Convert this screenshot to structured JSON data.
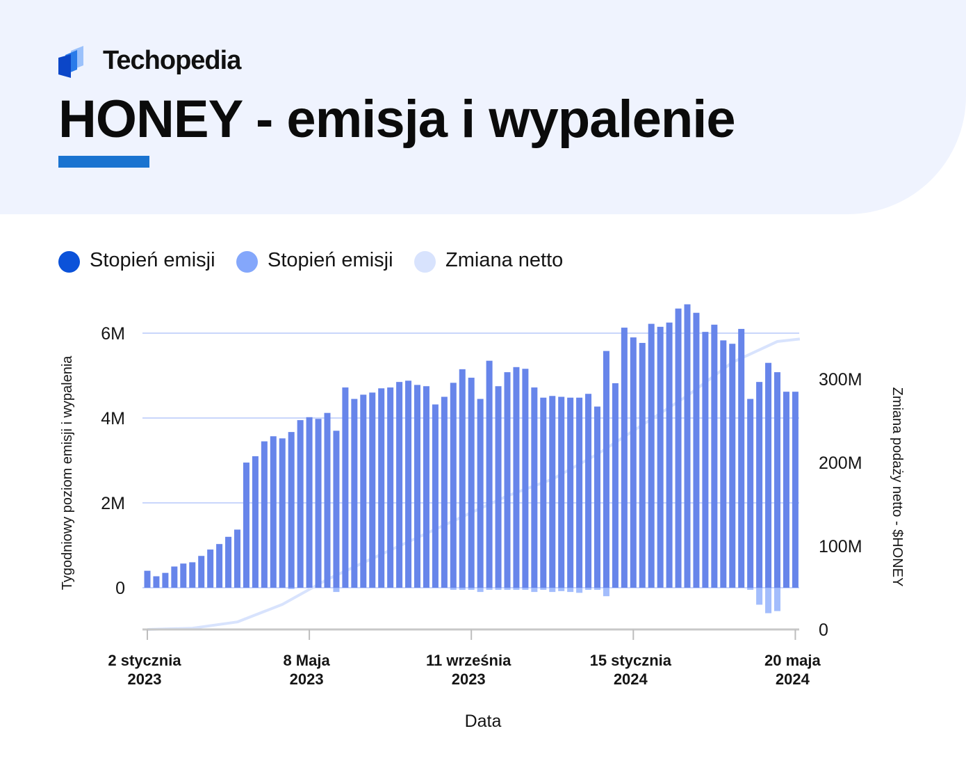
{
  "brand": {
    "name": "Techopedia",
    "logo_icon": "techopedia-logo-icon"
  },
  "title": "HONEY - emisja i wypalenie",
  "colors": {
    "header_bg": "#eff3fe",
    "accent": "#1a73d0",
    "emission": "#0b52d9",
    "burn": "#84a7fb",
    "net_change": "#d8e3fd",
    "bars": "#6785ea",
    "gridline": "#c9d6fb"
  },
  "legend": [
    {
      "label": "Stopień emisji",
      "color": "#0b52d9"
    },
    {
      "label": "Stopień emisji",
      "color": "#84a7fb"
    },
    {
      "label": "Zmiana netto",
      "color": "#d8e3fd"
    }
  ],
  "chart_data": {
    "type": "bar",
    "xlabel": "Data",
    "ylabel_left": "Tygodniowy poziom emisji i wypalenia",
    "ylabel_right": "Zmiana podaży netto - $HONEY",
    "left_ticks": [
      "6M",
      "4M",
      "2M",
      "0"
    ],
    "right_ticks": [
      "300M",
      "200M",
      "100M",
      "0"
    ],
    "ylim_left": [
      -1000000,
      6000000
    ],
    "ylim_right": [
      0,
      300000000
    ],
    "x_ticks": [
      {
        "line1": "2 stycznia",
        "line2": "2023",
        "week": 0
      },
      {
        "line1": "8 Maja",
        "line2": "2023",
        "week": 18
      },
      {
        "line1": "11 września",
        "line2": "2023",
        "week": 36
      },
      {
        "line1": "15 stycznia",
        "line2": "2024",
        "week": 54
      },
      {
        "line1": "20 maja",
        "line2": "2024",
        "week": 72
      }
    ],
    "grid": true,
    "legend_position": "top-left",
    "series": [
      {
        "name": "Stopień emisji",
        "type": "bar",
        "values": [
          0.4,
          0.27,
          0.35,
          0.5,
          0.57,
          0.6,
          0.75,
          0.9,
          1.03,
          1.2,
          1.37,
          2.95,
          3.1,
          3.45,
          3.57,
          3.52,
          3.67,
          3.95,
          4.02,
          3.98,
          4.12,
          3.7,
          4.72,
          4.45,
          4.55,
          4.6,
          4.7,
          4.72,
          4.85,
          4.88,
          4.78,
          4.75,
          4.32,
          4.5,
          4.83,
          5.15,
          4.95,
          4.45,
          5.35,
          4.75,
          5.08,
          5.2,
          5.16,
          4.72,
          4.48,
          4.52,
          4.5,
          4.48,
          4.48,
          4.57,
          4.27,
          5.58,
          4.82,
          6.13,
          5.9,
          5.77,
          6.22,
          6.15,
          6.25,
          6.58,
          6.68,
          6.48,
          6.03,
          6.2,
          5.83,
          5.75,
          6.1,
          4.45,
          4.85,
          5.3,
          5.08,
          4.62,
          4.62
        ]
      },
      {
        "name": "Stopień emisji",
        "type": "bar",
        "values": [
          0,
          0,
          0,
          0,
          0,
          0,
          0,
          0,
          0,
          0,
          0,
          0,
          0,
          0,
          0,
          0,
          -0.03,
          0,
          0,
          0,
          0,
          -0.1,
          0,
          0,
          0,
          0,
          0,
          0,
          0,
          0,
          0,
          0,
          0,
          0,
          -0.05,
          -0.05,
          -0.05,
          -0.1,
          -0.05,
          -0.05,
          -0.05,
          -0.05,
          -0.05,
          -0.1,
          -0.05,
          -0.1,
          -0.08,
          -0.1,
          -0.12,
          -0.05,
          -0.05,
          -0.2,
          0,
          0,
          0,
          0,
          0,
          0,
          0,
          0,
          0,
          0,
          0,
          0,
          0,
          0,
          0,
          -0.05,
          -0.4,
          -0.6,
          -0.55,
          0,
          0
        ]
      },
      {
        "name": "Zmiana netto",
        "type": "line",
        "x": [
          0,
          5,
          10,
          15,
          20,
          25,
          30,
          35,
          40,
          45,
          50,
          55,
          60,
          65,
          70,
          72.5
        ],
        "values": [
          0,
          1.5,
          9,
          30,
          60,
          85,
          110,
          135,
          160,
          180,
          210,
          245,
          280,
          320,
          345,
          348
        ]
      }
    ]
  }
}
